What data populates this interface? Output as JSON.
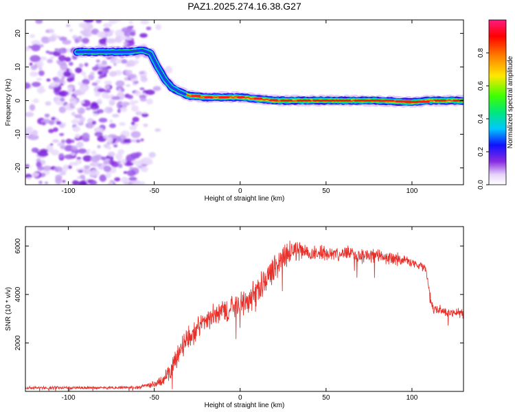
{
  "page": {
    "title": "PAZ1.2025.274.16.38.G27"
  },
  "chart_data": [
    {
      "type": "heatmap",
      "title": "PAZ1.2025.274.16.38.G27",
      "xlabel": "Height of straight line (km)",
      "ylabel": "Frequency (Hz)",
      "xlim": [
        -125,
        130
      ],
      "ylim": [
        -25,
        24
      ],
      "xticks": [
        -100,
        -50,
        0,
        50,
        100
      ],
      "yticks": [
        -20,
        -10,
        0,
        10,
        20
      ],
      "colorbar": {
        "label": "Normalized spectral amplitude",
        "range": [
          0,
          1
        ],
        "ticks": [
          "0.0",
          "0.2",
          "0.4",
          "0.6",
          "0.8"
        ],
        "tick_values": [
          0.0,
          0.2,
          0.4,
          0.6,
          0.8
        ]
      },
      "ridge": [
        {
          "x": -95,
          "y": 14.5,
          "a": 0.35
        },
        {
          "x": -85,
          "y": 14.5,
          "a": 0.38
        },
        {
          "x": -75,
          "y": 14.5,
          "a": 0.36
        },
        {
          "x": -65,
          "y": 14.5,
          "a": 0.4
        },
        {
          "x": -57,
          "y": 15.0,
          "a": 0.42
        },
        {
          "x": -52,
          "y": 14.0,
          "a": 0.45
        },
        {
          "x": -48,
          "y": 10.0,
          "a": 0.5
        },
        {
          "x": -44,
          "y": 6.5,
          "a": 0.55
        },
        {
          "x": -40,
          "y": 4.0,
          "a": 0.6
        },
        {
          "x": -35,
          "y": 2.5,
          "a": 0.7
        },
        {
          "x": -30,
          "y": 1.5,
          "a": 0.8
        },
        {
          "x": -20,
          "y": 1.0,
          "a": 0.8
        },
        {
          "x": -10,
          "y": 1.0,
          "a": 0.78
        },
        {
          "x": 0,
          "y": 1.0,
          "a": 0.75
        },
        {
          "x": 10,
          "y": 0.5,
          "a": 0.8
        },
        {
          "x": 20,
          "y": 0.0,
          "a": 0.85
        },
        {
          "x": 40,
          "y": 0.0,
          "a": 0.9
        },
        {
          "x": 60,
          "y": 0.0,
          "a": 0.9
        },
        {
          "x": 80,
          "y": 0.0,
          "a": 0.9
        },
        {
          "x": 100,
          "y": -0.5,
          "a": 0.92
        },
        {
          "x": 110,
          "y": 0.0,
          "a": 0.9
        },
        {
          "x": 130,
          "y": 0.0,
          "a": 0.9
        }
      ],
      "noise_region": {
        "x": [
          -125,
          -55
        ],
        "y": [
          -25,
          24
        ]
      }
    },
    {
      "type": "line",
      "xlabel": "Height of straight line (km)",
      "ylabel": "SNR (10 * v/v)",
      "xlim": [
        -125,
        130
      ],
      "ylim": [
        0,
        6800
      ],
      "xticks": [
        -100,
        -50,
        0,
        50,
        100
      ],
      "yticks": [
        2000,
        4000,
        6000
      ],
      "color": "#e8302a",
      "series": [
        {
          "name": "SNR",
          "envelope": {
            "x": [
              -125,
              -100,
              -60,
              -55,
              -50,
              -45,
              -40,
              -35,
              -30,
              -25,
              -20,
              -15,
              -10,
              -5,
              0,
              5,
              10,
              15,
              20,
              25,
              30,
              35,
              40,
              50,
              60,
              70,
              80,
              90,
              100,
              108,
              110,
              112,
              120,
              130
            ],
            "mean": [
              150,
              150,
              160,
              230,
              280,
              450,
              900,
              1700,
              2300,
              2600,
              2900,
              3100,
              3300,
              3500,
              3600,
              3800,
              4000,
              4600,
              5100,
              5500,
              5900,
              5800,
              5700,
              5700,
              5700,
              5600,
              5600,
              5500,
              5300,
              5100,
              4200,
              3400,
              3300,
              3200
            ],
            "noise": [
              60,
              60,
              60,
              90,
              150,
              250,
              400,
              450,
              500,
              500,
              500,
              500,
              500,
              500,
              550,
              550,
              600,
              600,
              550,
              550,
              450,
              350,
              300,
              300,
              300,
              300,
              300,
              300,
              200,
              150,
              100,
              200,
              200,
              200
            ]
          }
        }
      ]
    }
  ]
}
